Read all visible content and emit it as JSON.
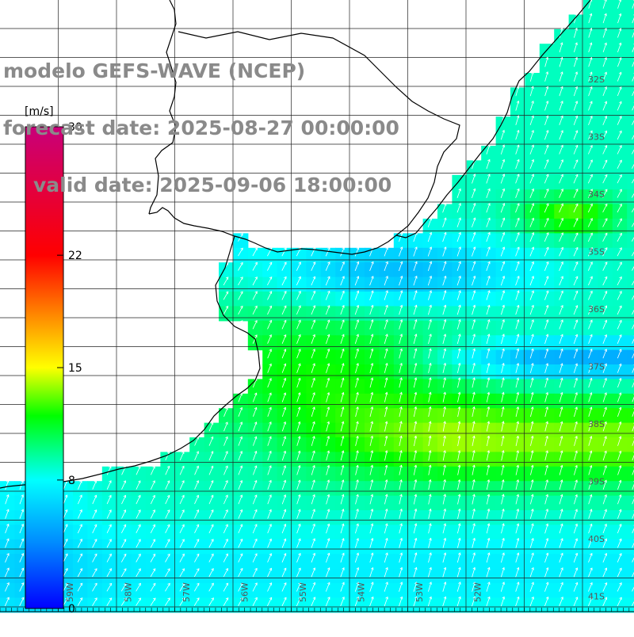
{
  "title": {
    "model": "modelo GEFS-WAVE (NCEP)",
    "forecast": "forecast date: 2025-08-27 00:00:00",
    "valid": "valid date: 2025-09-06 18:00:00"
  },
  "variable": "wind speed",
  "colorbar": {
    "units": "[m/s]",
    "ticks": [
      {
        "value": 30,
        "label": "30"
      },
      {
        "value": 22,
        "label": "22"
      },
      {
        "value": 15,
        "label": "15"
      },
      {
        "value": 8,
        "label": "8"
      },
      {
        "value": 0,
        "label": "0"
      }
    ],
    "range": [
      0,
      30
    ],
    "stops": [
      {
        "value": 0,
        "color": "#0000ff"
      },
      {
        "value": 4,
        "color": "#0088ff"
      },
      {
        "value": 8,
        "color": "#00ffff"
      },
      {
        "value": 12,
        "color": "#00ff00"
      },
      {
        "value": 15,
        "color": "#ffff00"
      },
      {
        "value": 22,
        "color": "#ff0000"
      },
      {
        "value": 30,
        "color": "#c8007a"
      }
    ]
  },
  "latitude_labels": [
    "32S",
    "33S",
    "34S",
    "35S",
    "36S",
    "37S",
    "38S",
    "39S",
    "40S",
    "41S"
  ],
  "longitude_labels": [
    "59W",
    "58W",
    "57W",
    "56W",
    "55W",
    "54W",
    "53W",
    "52W"
  ],
  "colors": {
    "grid": "#222222",
    "coast": "#000000",
    "arrows": "#ffffff",
    "title_text": "#8a8a8a",
    "land": "#ffffff"
  }
}
